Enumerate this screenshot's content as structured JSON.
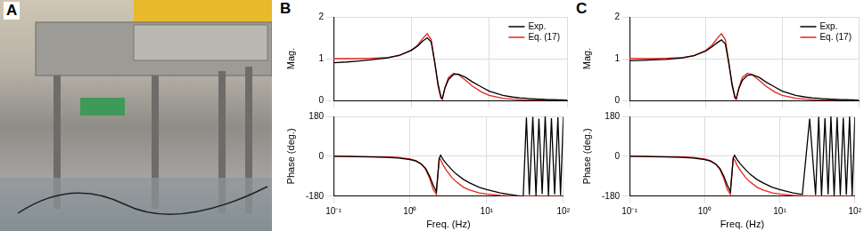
{
  "panel_labels": [
    "A",
    "B",
    "C"
  ],
  "chart_data": [
    {
      "type": "line",
      "ylabel": "Mag.",
      "log": "x",
      "grid": true,
      "legend": "upper right",
      "tick_labels": "y",
      "xlim": [
        0.1,
        100
      ],
      "xticks": [
        {
          "value": 0.1,
          "label": "10⁻¹"
        },
        {
          "value": 1,
          "label": "10⁰"
        },
        {
          "value": 10,
          "label": "10¹"
        },
        {
          "value": 100,
          "label": "10²"
        }
      ],
      "ylim": [
        0,
        2
      ],
      "yticks": [
        0,
        1,
        2
      ],
      "x": [
        0.1,
        0.15,
        0.2,
        0.3,
        0.5,
        0.7,
        1,
        1.2,
        1.4,
        1.6,
        1.8,
        2,
        2.2,
        2.4,
        2.5,
        2.7,
        3,
        3.5,
        4,
        5,
        6,
        8,
        10,
        15,
        20,
        25,
        30,
        33,
        36,
        40,
        44,
        48,
        53,
        58,
        64,
        70,
        77,
        85,
        92,
        100
      ],
      "series": [
        {
          "name": "Exp.",
          "color": "#000000",
          "values": [
            0.9,
            0.92,
            0.94,
            0.97,
            1.02,
            1.08,
            1.2,
            1.3,
            1.42,
            1.5,
            1.4,
            0.9,
            0.4,
            0.08,
            0.05,
            0.3,
            0.5,
            0.62,
            0.63,
            0.55,
            0.45,
            0.32,
            0.22,
            0.12,
            0.08,
            0.06,
            0.05,
            0.04,
            0.04,
            0.035,
            0.03,
            0.03,
            0.025,
            0.02,
            0.02,
            0.02,
            0.015,
            0.015,
            0.01,
            0.01
          ]
        },
        {
          "name": "Eq. (17)",
          "color": "#e8231f",
          "values": [
            1,
            1,
            1,
            1.01,
            1.03,
            1.07,
            1.2,
            1.32,
            1.48,
            1.6,
            1.45,
            0.9,
            0.35,
            0.05,
            0.02,
            0.3,
            0.55,
            0.65,
            0.62,
            0.48,
            0.35,
            0.2,
            0.12,
            0.05,
            0.03,
            0.02,
            0.01,
            0.01,
            0.01,
            0.01,
            0.01,
            0.01,
            0,
            0,
            0,
            0,
            0,
            0,
            0,
            0
          ]
        }
      ]
    },
    {
      "type": "line",
      "xlabel": "Freq. (Hz)",
      "ylabel": "Phase (deg.)",
      "log": "x",
      "grid": true,
      "xlim": [
        0.1,
        100
      ],
      "xticks": [
        {
          "value": 0.1,
          "label": "10⁻¹"
        },
        {
          "value": 1,
          "label": "10⁰"
        },
        {
          "value": 10,
          "label": "10¹"
        },
        {
          "value": 100,
          "label": "10²"
        }
      ],
      "ylim": [
        -180,
        180
      ],
      "yticks": [
        -180,
        0,
        180
      ],
      "x": [
        0.1,
        0.15,
        0.2,
        0.3,
        0.5,
        0.7,
        1,
        1.2,
        1.4,
        1.6,
        1.8,
        2,
        2.2,
        2.4,
        2.5,
        2.7,
        3,
        3.5,
        4,
        5,
        6,
        8,
        10,
        15,
        20,
        25,
        30,
        33,
        36,
        40,
        44,
        48,
        53,
        58,
        64,
        70,
        77,
        85,
        92,
        100
      ],
      "series": [
        {
          "name": "Exp.",
          "color": "#000000",
          "values": [
            0,
            -1,
            -2,
            -3,
            -5,
            -8,
            -15,
            -22,
            -35,
            -55,
            -90,
            -130,
            -160,
            -10,
            5,
            -15,
            -35,
            -60,
            -80,
            -105,
            -120,
            -140,
            -150,
            -165,
            -172,
            -177,
            -180,
            175,
            -175,
            178,
            -178,
            170,
            -170,
            180,
            -180,
            172,
            -172,
            176,
            -176,
            178
          ]
        },
        {
          "name": "Eq. (17)",
          "color": "#e8231f",
          "values": [
            0,
            0,
            -1,
            -2,
            -3,
            -5,
            -12,
            -20,
            -35,
            -60,
            -100,
            -150,
            -172,
            -10,
            -15,
            -40,
            -65,
            -95,
            -115,
            -140,
            -152,
            -165,
            -170,
            -176,
            -178,
            -179,
            -179,
            -179,
            -179,
            -180,
            -180,
            -180,
            -180,
            -180,
            -180,
            -180,
            -180,
            -180,
            -180,
            -180
          ]
        }
      ]
    },
    {
      "type": "line",
      "ylabel": "Mag.",
      "log": "x",
      "grid": true,
      "legend": "upper right",
      "tick_labels": "y",
      "xlim": [
        0.1,
        100
      ],
      "xticks": [
        {
          "value": 0.1,
          "label": "10⁻¹"
        },
        {
          "value": 1,
          "label": "10⁰"
        },
        {
          "value": 10,
          "label": "10¹"
        },
        {
          "value": 100,
          "label": "10²"
        }
      ],
      "ylim": [
        0,
        2
      ],
      "yticks": [
        0,
        1,
        2
      ],
      "x": [
        0.1,
        0.15,
        0.2,
        0.3,
        0.5,
        0.7,
        1,
        1.2,
        1.4,
        1.6,
        1.8,
        2,
        2.2,
        2.4,
        2.5,
        2.7,
        3,
        3.5,
        4,
        5,
        6,
        8,
        10,
        15,
        20,
        25,
        30,
        33,
        36,
        40,
        44,
        48,
        53,
        58,
        64,
        70,
        77,
        85,
        92,
        100
      ],
      "series": [
        {
          "name": "Exp.",
          "color": "#000000",
          "values": [
            0.95,
            0.96,
            0.97,
            0.98,
            1.02,
            1.07,
            1.18,
            1.28,
            1.38,
            1.45,
            1.35,
            0.88,
            0.4,
            0.08,
            0.05,
            0.28,
            0.48,
            0.6,
            0.62,
            0.55,
            0.45,
            0.32,
            0.22,
            0.12,
            0.08,
            0.06,
            0.05,
            0.04,
            0.04,
            0.035,
            0.03,
            0.03,
            0.025,
            0.02,
            0.02,
            0.02,
            0.015,
            0.015,
            0.01,
            0.01
          ]
        },
        {
          "name": "Eq. (17)",
          "color": "#e8231f",
          "values": [
            1,
            1,
            1,
            1.01,
            1.03,
            1.07,
            1.2,
            1.32,
            1.48,
            1.6,
            1.45,
            0.9,
            0.35,
            0.05,
            0.02,
            0.3,
            0.55,
            0.65,
            0.62,
            0.48,
            0.35,
            0.2,
            0.12,
            0.05,
            0.03,
            0.02,
            0.01,
            0.01,
            0.01,
            0.01,
            0.01,
            0.01,
            0,
            0,
            0,
            0,
            0,
            0,
            0,
            0
          ]
        }
      ]
    },
    {
      "type": "line",
      "xlabel": "Freq. (Hz)",
      "ylabel": "Phase (deg.)",
      "log": "x",
      "grid": true,
      "xlim": [
        0.1,
        100
      ],
      "xticks": [
        {
          "value": 0.1,
          "label": "10⁻¹"
        },
        {
          "value": 1,
          "label": "10⁰"
        },
        {
          "value": 10,
          "label": "10¹"
        },
        {
          "value": 100,
          "label": "10²"
        }
      ],
      "ylim": [
        -180,
        180
      ],
      "yticks": [
        -180,
        0,
        180
      ],
      "x": [
        0.1,
        0.15,
        0.2,
        0.3,
        0.5,
        0.7,
        1,
        1.2,
        1.4,
        1.6,
        1.8,
        2,
        2.2,
        2.4,
        2.5,
        2.7,
        3,
        3.5,
        4,
        5,
        6,
        8,
        10,
        15,
        20,
        25,
        30,
        33,
        36,
        40,
        44,
        48,
        53,
        58,
        64,
        70,
        77,
        85,
        92,
        100
      ],
      "series": [
        {
          "name": "Exp.",
          "color": "#000000",
          "values": [
            0,
            -1,
            -2,
            -3,
            -5,
            -8,
            -15,
            -22,
            -35,
            -55,
            -90,
            -130,
            -160,
            -10,
            5,
            -15,
            -35,
            -60,
            -80,
            -105,
            -120,
            -140,
            -150,
            -165,
            -172,
            170,
            -175,
            178,
            -178,
            172,
            -172,
            180,
            -180,
            176,
            -176,
            174,
            -174,
            179,
            -179,
            177
          ]
        },
        {
          "name": "Eq. (17)",
          "color": "#e8231f",
          "values": [
            0,
            0,
            -1,
            -2,
            -3,
            -5,
            -12,
            -20,
            -35,
            -60,
            -100,
            -150,
            -172,
            -10,
            -15,
            -40,
            -65,
            -95,
            -115,
            -140,
            -152,
            -165,
            -170,
            -176,
            -178,
            -179,
            -179,
            -179,
            -179,
            -180,
            -180,
            -180,
            -180,
            -180,
            -180,
            -180,
            -180,
            -180,
            -180,
            -180
          ]
        }
      ]
    }
  ]
}
